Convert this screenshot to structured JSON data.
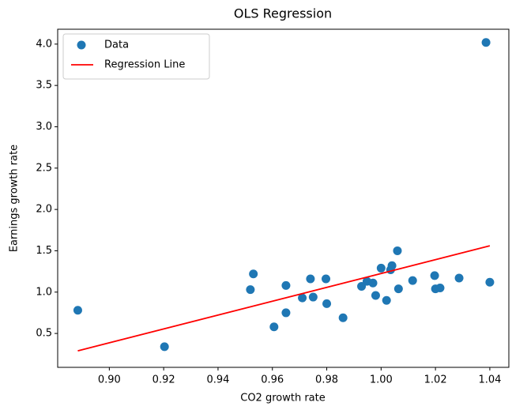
{
  "chart_data": {
    "type": "scatter",
    "title": "OLS Regression",
    "xlabel": "CO2 growth rate",
    "ylabel": "Earnings growth rate",
    "xlim": [
      0.881,
      1.047
    ],
    "ylim": [
      0.09,
      4.18
    ],
    "xticks": [
      {
        "value": 0.9,
        "label": "0.90"
      },
      0.92,
      0.94,
      0.96,
      0.98,
      {
        "value": 1.0,
        "label": "1.00"
      },
      1.02,
      1.04
    ],
    "yticks": [
      0.5,
      {
        "value": 1.0,
        "label": "1.0"
      },
      1.5,
      {
        "value": 2.0,
        "label": "2.0"
      },
      2.5,
      {
        "value": 3.0,
        "label": "3.0"
      },
      3.5,
      {
        "value": 4.0,
        "label": "4.0"
      }
    ],
    "grid": false,
    "legend": "upper left",
    "series": [
      {
        "name": "Data",
        "type": "scatter",
        "color": "#1f77b4",
        "x": [
          0.8884,
          0.9203,
          0.9519,
          0.953,
          0.9606,
          0.965,
          0.965,
          0.971,
          0.974,
          0.975,
          0.9797,
          0.98,
          0.986,
          0.9928,
          0.9948,
          0.997,
          0.998,
          1.0,
          1.002,
          1.0035,
          1.004,
          1.006,
          1.0064,
          1.0116,
          1.0197,
          1.02,
          1.0217,
          1.0287,
          1.0386,
          1.04
        ],
        "values": [
          0.78,
          0.34,
          1.03,
          1.22,
          0.58,
          1.08,
          0.75,
          0.93,
          1.16,
          0.94,
          1.16,
          0.86,
          0.69,
          1.07,
          1.13,
          1.11,
          0.96,
          1.29,
          0.9,
          1.27,
          1.32,
          1.5,
          1.04,
          1.14,
          1.2,
          1.04,
          1.05,
          1.17,
          4.02,
          1.12
        ]
      },
      {
        "name": "Regression Line",
        "type": "line",
        "color": "#ff0000",
        "x": [
          0.8884,
          1.04
        ],
        "values": [
          0.29,
          1.56
        ]
      }
    ]
  }
}
